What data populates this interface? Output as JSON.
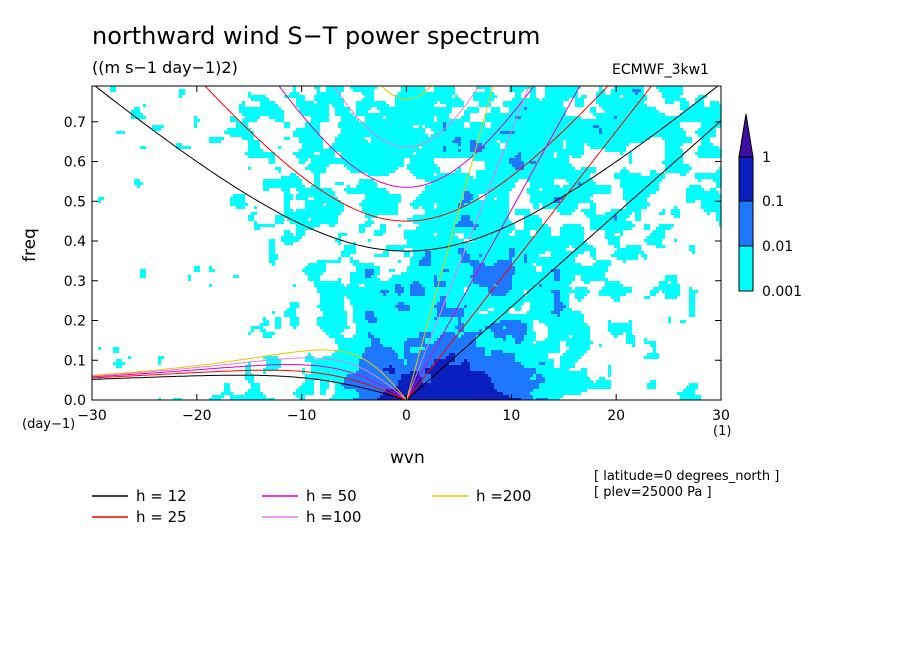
{
  "chart_data": {
    "type": "heatmap",
    "title": "northward wind S−T power spectrum",
    "subtitle": "((m s−1 day−1)2)",
    "tag": "ECMWF_3kw1",
    "xlabel": "wvn",
    "ylabel": "freq",
    "x_unit": "(1)",
    "y_unit": "(day−1)",
    "xlim": [
      -30,
      30
    ],
    "ylim": [
      0,
      0.79
    ],
    "x_ticks": [
      -30,
      -20,
      -10,
      0,
      10,
      20,
      30
    ],
    "y_ticks": [
      0.0,
      0.1,
      0.2,
      0.3,
      0.4,
      0.5,
      0.6,
      0.7
    ],
    "grid": false,
    "colorbar": {
      "levels": [
        "0.001",
        "0.01",
        "0.1",
        "1"
      ],
      "colors": [
        "#00ffff",
        "#1e78ff",
        "#0b1ebe",
        "#3c0fa0"
      ],
      "extend": "max"
    },
    "dispersion_curves": [
      {
        "name": "h = 12",
        "h": 12,
        "color": "#000000"
      },
      {
        "name": "h = 25",
        "h": 25,
        "color": "#ff0000"
      },
      {
        "name": "h = 50",
        "h": 50,
        "color": "#dd00cc"
      },
      {
        "name": "h =100",
        "h": 100,
        "color": "#e67be6"
      },
      {
        "name": "h =200",
        "h": 200,
        "color": "#e6c800"
      }
    ],
    "notes": [
      "[ latitude=0 degrees_north ]",
      "[ plev=25000 Pa ]"
    ]
  }
}
